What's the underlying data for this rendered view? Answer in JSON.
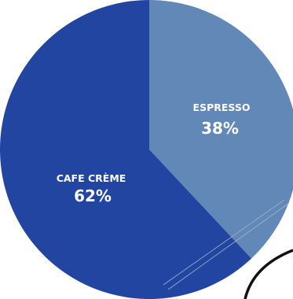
{
  "chart_data": {
    "type": "pie",
    "slices": [
      {
        "label": "CAFE CRÈME",
        "percent_label": "62%",
        "value": 62,
        "color": "#2145a0"
      },
      {
        "label": "ESPRESSO",
        "percent_label": "38%",
        "value": 38,
        "color": "#6188b7"
      }
    ],
    "title": "",
    "legend": "none"
  }
}
